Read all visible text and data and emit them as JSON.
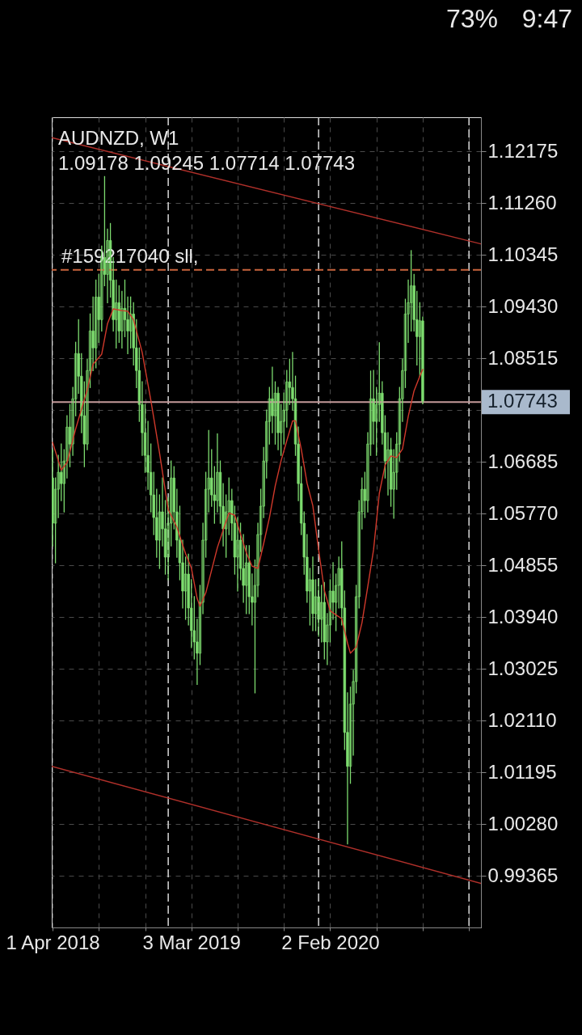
{
  "chart_data": {
    "type": "candlestick",
    "title": "AUDNZD, W1",
    "subtitle": "1.09178 1.09245 1.07714 1.07743",
    "color": "#7ddc6f",
    "x": [
      "2018-04-01",
      "2018-04-08",
      "2018-04-15",
      "2018-04-22",
      "2018-04-29",
      "2018-05-06",
      "2018-05-13",
      "2018-05-20",
      "2018-05-27",
      "2018-06-03",
      "2018-06-10",
      "2018-06-17",
      "2018-06-24",
      "2018-07-01",
      "2018-07-08",
      "2018-07-15",
      "2018-07-22",
      "2018-07-29",
      "2018-08-05",
      "2018-08-12",
      "2018-08-19",
      "2018-08-26",
      "2018-09-02",
      "2018-09-09",
      "2018-09-16",
      "2018-09-23",
      "2018-09-30",
      "2018-10-07",
      "2018-10-14",
      "2018-10-21",
      "2018-10-28",
      "2018-11-04",
      "2018-11-11",
      "2018-11-18",
      "2018-11-25",
      "2018-12-02",
      "2018-12-09",
      "2018-12-16",
      "2018-12-23",
      "2018-12-30",
      "2019-01-06",
      "2019-01-13",
      "2019-01-20",
      "2019-01-27",
      "2019-02-03",
      "2019-02-10",
      "2019-02-17",
      "2019-02-24",
      "2019-03-03",
      "2019-03-10",
      "2019-03-17",
      "2019-03-24",
      "2019-03-31",
      "2019-04-07",
      "2019-04-14",
      "2019-04-21",
      "2019-04-28",
      "2019-05-05",
      "2019-05-12",
      "2019-05-19",
      "2019-05-26",
      "2019-06-02",
      "2019-06-09",
      "2019-06-16",
      "2019-06-23",
      "2019-06-30",
      "2019-07-07",
      "2019-07-14",
      "2019-07-21",
      "2019-07-28",
      "2019-08-04",
      "2019-08-11",
      "2019-08-18",
      "2019-08-25",
      "2019-09-01",
      "2019-09-08",
      "2019-09-15",
      "2019-09-22",
      "2019-09-29",
      "2019-10-06",
      "2019-10-13",
      "2019-10-20",
      "2019-10-27",
      "2019-11-03",
      "2019-11-10",
      "2019-11-17",
      "2019-11-24",
      "2019-12-01",
      "2019-12-08",
      "2019-12-15",
      "2019-12-22",
      "2019-12-29",
      "2020-01-05",
      "2020-01-12",
      "2020-01-19",
      "2020-01-26",
      "2020-02-02",
      "2020-02-09",
      "2020-02-16",
      "2020-02-23",
      "2020-03-01",
      "2020-03-08",
      "2020-03-15",
      "2020-03-22",
      "2020-03-29",
      "2020-04-05",
      "2020-04-12",
      "2020-04-19",
      "2020-04-26",
      "2020-05-03",
      "2020-05-10",
      "2020-05-17",
      "2020-05-24",
      "2020-05-31",
      "2020-06-07",
      "2020-06-14",
      "2020-06-21",
      "2020-06-28",
      "2020-07-05",
      "2020-07-12",
      "2020-07-19",
      "2020-07-26",
      "2020-08-02",
      "2020-08-09",
      "2020-08-16",
      "2020-08-23",
      "2020-08-30",
      "2020-09-06",
      "2020-09-13"
    ],
    "ohlc": [
      [
        1.064,
        1.069,
        1.052,
        1.056
      ],
      [
        1.056,
        1.064,
        1.049,
        1.062
      ],
      [
        1.062,
        1.068,
        1.057,
        1.065
      ],
      [
        1.065,
        1.07,
        1.06,
        1.063
      ],
      [
        1.063,
        1.069,
        1.058,
        1.067
      ],
      [
        1.067,
        1.075,
        1.064,
        1.073
      ],
      [
        1.073,
        1.077,
        1.066,
        1.07
      ],
      [
        1.07,
        1.08,
        1.068,
        1.078
      ],
      [
        1.078,
        1.088,
        1.075,
        1.086
      ],
      [
        1.086,
        1.092,
        1.079,
        1.082
      ],
      [
        1.082,
        1.086,
        1.072,
        1.075
      ],
      [
        1.075,
        1.081,
        1.066,
        1.07
      ],
      [
        1.07,
        1.085,
        1.069,
        1.083
      ],
      [
        1.083,
        1.093,
        1.08,
        1.09
      ],
      [
        1.09,
        1.096,
        1.083,
        1.087
      ],
      [
        1.087,
        1.099,
        1.0835,
        1.096
      ],
      [
        1.096,
        1.1,
        1.088,
        1.092
      ],
      [
        1.092,
        1.105,
        1.09,
        1.103
      ],
      [
        1.103,
        1.1173,
        1.098,
        1.1
      ],
      [
        1.1,
        1.108,
        1.095,
        1.106
      ],
      [
        1.106,
        1.109,
        1.096,
        1.099
      ],
      [
        1.099,
        1.103,
        1.09,
        1.092
      ],
      [
        1.092,
        1.099,
        1.087,
        1.095
      ],
      [
        1.095,
        1.098,
        1.088,
        1.09
      ],
      [
        1.09,
        1.097,
        1.087,
        1.094
      ],
      [
        1.094,
        1.099,
        1.089,
        1.092
      ],
      [
        1.092,
        1.096,
        1.086,
        1.09
      ],
      [
        1.09,
        1.096,
        1.087,
        1.093
      ],
      [
        1.093,
        1.095,
        1.084,
        1.087
      ],
      [
        1.087,
        1.092,
        1.08,
        1.083
      ],
      [
        1.083,
        1.087,
        1.074,
        1.077
      ],
      [
        1.077,
        1.081,
        1.068,
        1.072
      ],
      [
        1.072,
        1.077,
        1.065,
        1.068
      ],
      [
        1.068,
        1.074,
        1.062,
        1.065
      ],
      [
        1.065,
        1.07,
        1.058,
        1.061
      ],
      [
        1.061,
        1.065,
        1.054,
        1.057
      ],
      [
        1.057,
        1.062,
        1.05,
        1.053
      ],
      [
        1.053,
        1.061,
        1.048,
        1.058
      ],
      [
        1.058,
        1.064,
        1.052,
        1.055
      ],
      [
        1.055,
        1.06,
        1.047,
        1.05
      ],
      [
        1.05,
        1.0605,
        1.046,
        1.056
      ],
      [
        1.056,
        1.067,
        1.052,
        1.064
      ],
      [
        1.064,
        1.066,
        1.055,
        1.058
      ],
      [
        1.058,
        1.062,
        1.05,
        1.053
      ],
      [
        1.053,
        1.059,
        1.046,
        1.049
      ],
      [
        1.049,
        1.053,
        1.041,
        1.044
      ],
      [
        1.044,
        1.05,
        1.039,
        1.047
      ],
      [
        1.047,
        1.0505,
        1.038,
        1.041
      ],
      [
        1.041,
        1.046,
        1.034,
        1.037
      ],
      [
        1.037,
        1.043,
        1.032,
        1.035
      ],
      [
        1.035,
        1.039,
        1.0275,
        1.033
      ],
      [
        1.033,
        1.045,
        1.031,
        1.042
      ],
      [
        1.042,
        1.056,
        1.04,
        1.053
      ],
      [
        1.053,
        1.065,
        1.05,
        1.062
      ],
      [
        1.062,
        1.0724,
        1.058,
        1.064
      ],
      [
        1.064,
        1.069,
        1.059,
        1.061
      ],
      [
        1.061,
        1.066,
        1.056,
        1.06
      ],
      [
        1.06,
        1.0718,
        1.058,
        1.065
      ],
      [
        1.065,
        1.067,
        1.056,
        1.059
      ],
      [
        1.059,
        1.063,
        1.052,
        1.055
      ],
      [
        1.055,
        1.061,
        1.05,
        1.058
      ],
      [
        1.058,
        1.064,
        1.054,
        1.06
      ],
      [
        1.06,
        1.062,
        1.053,
        1.056
      ],
      [
        1.056,
        1.059,
        1.047,
        1.05
      ],
      [
        1.05,
        1.057,
        1.044,
        1.053
      ],
      [
        1.053,
        1.056,
        1.046,
        1.048
      ],
      [
        1.048,
        1.054,
        1.042,
        1.045
      ],
      [
        1.045,
        1.052,
        1.04,
        1.049
      ],
      [
        1.049,
        1.052,
        1.04,
        1.043
      ],
      [
        1.043,
        1.047,
        1.038,
        1.042
      ],
      [
        1.042,
        1.0495,
        1.026,
        1.045
      ],
      [
        1.045,
        1.056,
        1.043,
        1.054
      ],
      [
        1.054,
        1.062,
        1.051,
        1.059
      ],
      [
        1.059,
        1.0694,
        1.057,
        1.067
      ],
      [
        1.067,
        1.076,
        1.064,
        1.074
      ],
      [
        1.074,
        1.08,
        1.07,
        1.078
      ],
      [
        1.078,
        1.0836,
        1.072,
        1.075
      ],
      [
        1.075,
        1.081,
        1.07,
        1.079
      ],
      [
        1.079,
        1.08,
        1.069,
        1.072
      ],
      [
        1.072,
        1.077,
        1.068,
        1.074
      ],
      [
        1.074,
        1.079,
        1.07,
        1.076
      ],
      [
        1.076,
        1.083,
        1.073,
        1.081
      ],
      [
        1.081,
        1.085,
        1.077,
        1.08
      ],
      [
        1.08,
        1.0862,
        1.076,
        1.078
      ],
      [
        1.078,
        1.082,
        1.068,
        1.07
      ],
      [
        1.07,
        1.073,
        1.06,
        1.063
      ],
      [
        1.063,
        1.066,
        1.054,
        1.056
      ],
      [
        1.056,
        1.058,
        1.047,
        1.05
      ],
      [
        1.05,
        1.054,
        1.042,
        1.044
      ],
      [
        1.044,
        1.048,
        1.038,
        1.046
      ],
      [
        1.046,
        1.05,
        1.037,
        1.04
      ],
      [
        1.04,
        1.046,
        1.037,
        1.043
      ],
      [
        1.043,
        1.046,
        1.036,
        1.039
      ],
      [
        1.039,
        1.045,
        1.035,
        1.042
      ],
      [
        1.042,
        1.0455,
        1.032,
        1.035
      ],
      [
        1.035,
        1.04,
        1.031,
        1.038
      ],
      [
        1.038,
        1.046,
        1.035,
        1.044
      ],
      [
        1.044,
        1.049,
        1.039,
        1.042
      ],
      [
        1.042,
        1.047,
        1.037,
        1.045
      ],
      [
        1.045,
        1.05,
        1.041,
        1.048
      ],
      [
        1.048,
        1.0527,
        1.038,
        1.041
      ],
      [
        1.041,
        1.044,
        1.016,
        1.019
      ],
      [
        1.019,
        1.026,
        0.9993,
        1.013
      ],
      [
        1.013,
        1.027,
        1.01,
        1.024
      ],
      [
        1.024,
        1.03,
        1.015,
        1.028
      ],
      [
        1.028,
        1.045,
        1.026,
        1.043
      ],
      [
        1.043,
        1.06,
        1.041,
        1.058
      ],
      [
        1.058,
        1.064,
        1.055,
        1.062
      ],
      [
        1.062,
        1.065,
        1.057,
        1.06
      ],
      [
        1.06,
        1.072,
        1.058,
        1.07
      ],
      [
        1.07,
        1.0829,
        1.068,
        1.078
      ],
      [
        1.078,
        1.083,
        1.07,
        1.074
      ],
      [
        1.074,
        1.08,
        1.068,
        1.077
      ],
      [
        1.077,
        1.0879,
        1.074,
        1.079
      ],
      [
        1.079,
        1.081,
        1.07,
        1.072
      ],
      [
        1.072,
        1.075,
        1.064,
        1.067
      ],
      [
        1.067,
        1.072,
        1.061,
        1.069
      ],
      [
        1.069,
        1.071,
        1.059,
        1.062
      ],
      [
        1.062,
        1.069,
        1.0569,
        1.065
      ],
      [
        1.065,
        1.072,
        1.062,
        1.07
      ],
      [
        1.07,
        1.08,
        1.067,
        1.078
      ],
      [
        1.078,
        1.085,
        1.074,
        1.083
      ],
      [
        1.083,
        1.0956,
        1.08,
        1.093
      ],
      [
        1.093,
        1.099,
        1.088,
        1.095
      ],
      [
        1.095,
        1.1042,
        1.09,
        1.098
      ],
      [
        1.098,
        1.1,
        1.09,
        1.092
      ],
      [
        1.092,
        1.097,
        1.084,
        1.089
      ],
      [
        1.089,
        1.095,
        1.082,
        1.0918
      ],
      [
        1.09178,
        1.09245,
        1.07714,
        1.07743
      ]
    ],
    "series": [
      {
        "type": "line",
        "color": "#d0392b",
        "x": [
          "2018-04-01",
          "2018-04-22",
          "2018-05-06",
          "2018-05-27",
          "2018-06-24",
          "2018-07-08",
          "2018-07-29",
          "2018-08-12",
          "2018-08-26",
          "2018-09-16",
          "2018-09-30",
          "2018-10-14",
          "2018-11-04",
          "2018-11-25",
          "2018-12-16",
          "2019-01-06",
          "2019-01-27",
          "2019-02-17",
          "2019-03-03",
          "2019-03-17",
          "2019-03-24",
          "2019-04-07",
          "2019-04-21",
          "2019-05-05",
          "2019-05-19",
          "2019-06-02",
          "2019-06-16",
          "2019-06-30",
          "2019-07-14",
          "2019-07-28",
          "2019-08-11",
          "2019-08-25",
          "2019-09-08",
          "2019-09-22",
          "2019-10-06",
          "2019-10-20",
          "2019-11-03",
          "2019-11-10",
          "2019-11-24",
          "2019-12-08",
          "2019-12-22",
          "2020-01-05",
          "2020-01-19",
          "2020-02-02",
          "2020-02-16",
          "2020-03-01",
          "2020-03-15",
          "2020-03-22",
          "2020-04-05",
          "2020-04-19",
          "2020-05-03",
          "2020-05-17",
          "2020-05-31",
          "2020-06-14",
          "2020-06-28",
          "2020-07-12",
          "2020-07-26",
          "2020-08-09",
          "2020-08-23",
          "2020-09-06",
          "2020-09-13"
        ],
        "values": [
          1.0703,
          1.0654,
          1.0667,
          1.0727,
          1.0796,
          1.0841,
          1.0859,
          1.0913,
          1.0939,
          1.0936,
          1.0935,
          1.092,
          1.0862,
          1.0777,
          1.0684,
          1.0584,
          1.0553,
          1.0506,
          1.0481,
          1.0427,
          1.0413,
          1.0437,
          1.0477,
          1.0517,
          1.0548,
          1.0578,
          1.0574,
          1.0541,
          1.0508,
          1.0484,
          1.048,
          1.0524,
          1.057,
          1.0626,
          1.067,
          1.0706,
          1.0741,
          1.0741,
          1.0691,
          1.0631,
          1.0591,
          1.0513,
          1.0441,
          1.0405,
          1.0398,
          1.0391,
          1.0348,
          1.033,
          1.0341,
          1.0384,
          1.0448,
          1.0513,
          1.0613,
          1.0663,
          1.0679,
          1.0676,
          1.0691,
          1.0749,
          1.0794,
          1.082,
          1.0832
        ]
      },
      {
        "type": "line",
        "color": "#b0302a",
        "x": [
          "2018-03-30",
          "2021-02-01"
        ],
        "values": [
          1.1242,
          1.1054
        ]
      },
      {
        "type": "line",
        "color": "#b0302a",
        "x": [
          "2018-03-30",
          "2021-02-01"
        ],
        "values": [
          1.013,
          0.9923
        ]
      }
    ],
    "xlim": [
      "2018-03-30",
      "2021-02-01"
    ],
    "ylim": [
      0.9845,
      1.1278
    ],
    "xticks": [
      {
        "value": "2018-04-01",
        "label": "1 Apr 2018"
      },
      {
        "value": "2018-07-22",
        "label": null
      },
      {
        "value": "2018-11-11",
        "label": null
      },
      {
        "value": "2019-03-03",
        "label": "3 Mar 2019"
      },
      {
        "value": "2019-06-23",
        "label": null
      },
      {
        "value": "2019-10-13",
        "label": null
      },
      {
        "value": "2020-02-02",
        "label": "2 Feb 2020"
      },
      {
        "value": "2020-05-24",
        "label": null
      },
      {
        "value": "2020-09-13",
        "label": null
      },
      {
        "value": "2021-01-03",
        "label": null
      }
    ],
    "yticks": [
      1.12175,
      {
        "value": 1.1126,
        "label": "1.11260"
      },
      1.10345,
      {
        "value": 1.0943,
        "label": "1.09430"
      },
      1.08515,
      {
        "value": 1.076,
        "label": null
      },
      1.06685,
      {
        "value": 1.0577,
        "label": "1.05770"
      },
      1.04855,
      {
        "value": 1.0394,
        "label": "1.03940"
      },
      1.03025,
      {
        "value": 1.0211,
        "label": "1.02110"
      },
      1.01195,
      {
        "value": 1.0028,
        "label": "1.00280"
      },
      0.99365
    ],
    "grid": true,
    "ref_lines": [
      {
        "axis": "x",
        "value": "2019-01-06",
        "color": "#d8d8d8",
        "line_style": "dashed"
      },
      {
        "axis": "x",
        "value": "2020-01-05",
        "color": "#d8d8d8",
        "line_style": "dashed"
      },
      {
        "axis": "x",
        "value": "2021-01-03",
        "color": "#d8d8d8",
        "line_style": "dashed"
      },
      {
        "axis": "y",
        "value": 1.1008,
        "label": "#159217040 sll,",
        "color": "#c8643c",
        "line_style": "dashed"
      },
      {
        "axis": "y",
        "value": 1.07743,
        "label": "1.07743",
        "color": "#c49a9a",
        "line_style": "solid"
      }
    ],
    "annotations": [
      "73%",
      "9:47"
    ]
  }
}
